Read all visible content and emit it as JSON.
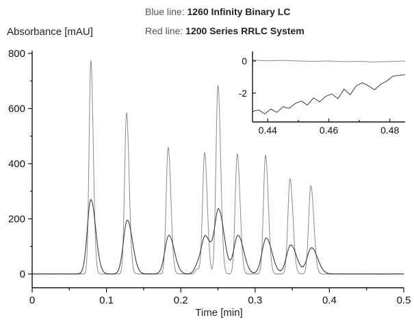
{
  "legend": {
    "blue_prefix": "Blue line: ",
    "blue_name": "1260 Infinity Binary LC",
    "red_prefix": "Red line: ",
    "red_name": "1200 Series RRLC System"
  },
  "colors": {
    "blue_series": "#8a8a8a",
    "red_series": "#3a3a3a",
    "axis": "#111111"
  },
  "chart_data": [
    {
      "type": "line",
      "title": "",
      "xlabel": "Time [min]",
      "ylabel": "Absorbance [mAU]",
      "xlim": [
        0,
        0.5
      ],
      "ylim": [
        -50,
        800
      ],
      "xticks": [
        0,
        0.1,
        0.2,
        0.3,
        0.4,
        0.5
      ],
      "xtick_labels": [
        "0",
        "0.1",
        "0.2",
        "0.3",
        "0.4",
        "0.5"
      ],
      "yticks": [
        0,
        200,
        400,
        600,
        800
      ],
      "ytick_labels": [
        "0",
        "200",
        "400",
        "600",
        "800"
      ],
      "grid": false,
      "legend_position": "top-center",
      "series": [
        {
          "name": "1260 Infinity Binary LC",
          "color_key": "blue_series",
          "peaks": [
            {
              "t": 0.079,
              "height": 775,
              "width": 0.0024
            },
            {
              "t": 0.127,
              "height": 585,
              "width": 0.0026
            },
            {
              "t": 0.183,
              "height": 460,
              "width": 0.0027
            },
            {
              "t": 0.222,
              "height": 18,
              "width": 0.0025
            },
            {
              "t": 0.232,
              "height": 440,
              "width": 0.0027
            },
            {
              "t": 0.25,
              "height": 685,
              "width": 0.0027
            },
            {
              "t": 0.276,
              "height": 435,
              "width": 0.0028
            },
            {
              "t": 0.314,
              "height": 430,
              "width": 0.0028
            },
            {
              "t": 0.347,
              "height": 345,
              "width": 0.0029
            },
            {
              "t": 0.375,
              "height": 320,
              "width": 0.003
            }
          ]
        },
        {
          "name": "1200 Series RRLC System",
          "color_key": "red_series",
          "peaks": [
            {
              "t": 0.079,
              "height": 270,
              "width": 0.0048
            },
            {
              "t": 0.128,
              "height": 195,
              "width": 0.0052
            },
            {
              "t": 0.184,
              "height": 140,
              "width": 0.0054
            },
            {
              "t": 0.222,
              "height": 25,
              "width": 0.004
            },
            {
              "t": 0.233,
              "height": 135,
              "width": 0.0054
            },
            {
              "t": 0.251,
              "height": 230,
              "width": 0.0055
            },
            {
              "t": 0.277,
              "height": 140,
              "width": 0.0056
            },
            {
              "t": 0.315,
              "height": 130,
              "width": 0.0057
            },
            {
              "t": 0.348,
              "height": 105,
              "width": 0.0058
            },
            {
              "t": 0.376,
              "height": 95,
              "width": 0.006
            }
          ]
        }
      ]
    },
    {
      "type": "line",
      "title": "",
      "xlabel": "",
      "ylabel": "",
      "xlim": [
        0.435,
        0.485
      ],
      "ylim": [
        -3.8,
        0.6
      ],
      "xticks": [
        0.44,
        0.46,
        0.48
      ],
      "xtick_labels": [
        "0.44",
        "0.46",
        "0.48"
      ],
      "yticks": [
        0,
        -2
      ],
      "ytick_labels": [
        "0",
        "-2"
      ],
      "grid": false,
      "position": "inset-top-right",
      "series": [
        {
          "name": "1260 Infinity Binary LC",
          "color_key": "blue_series",
          "x": [
            0.435,
            0.44,
            0.445,
            0.45,
            0.455,
            0.46,
            0.465,
            0.47,
            0.475,
            0.48,
            0.485
          ],
          "y": [
            0.05,
            0.02,
            0.04,
            0.0,
            -0.02,
            0.0,
            -0.04,
            -0.02,
            -0.06,
            -0.03,
            0.0
          ]
        },
        {
          "name": "1200 Series RRLC System",
          "color_key": "red_series",
          "x": [
            0.435,
            0.437,
            0.439,
            0.441,
            0.443,
            0.445,
            0.447,
            0.449,
            0.451,
            0.453,
            0.455,
            0.457,
            0.459,
            0.461,
            0.463,
            0.465,
            0.467,
            0.469,
            0.471,
            0.473,
            0.475,
            0.477,
            0.479,
            0.481,
            0.483,
            0.485
          ],
          "y": [
            -3.15,
            -3.05,
            -3.3,
            -3.0,
            -3.2,
            -2.85,
            -2.95,
            -2.65,
            -2.5,
            -2.75,
            -2.3,
            -2.55,
            -2.2,
            -2.05,
            -2.35,
            -1.75,
            -2.1,
            -1.55,
            -1.35,
            -1.55,
            -1.8,
            -1.45,
            -1.25,
            -0.95,
            -0.9,
            -0.85
          ]
        }
      ]
    }
  ]
}
